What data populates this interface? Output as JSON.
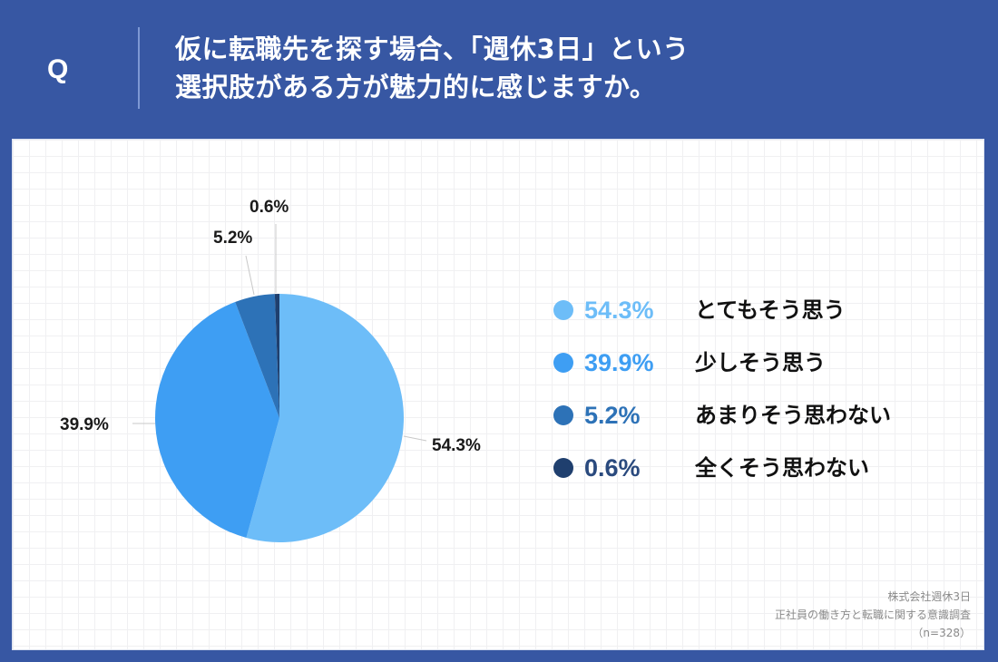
{
  "header": {
    "q_mark": "Q",
    "title_line1": "仮に転職先を探す場合、「週休3日」という",
    "title_line2": "選択肢がある方が魅力的に感じますか。",
    "bg_color": "#3757A3"
  },
  "pie_labels": {
    "s0": "54.3%",
    "s1": "39.9%",
    "s2": "5.2%",
    "s3": "0.6%"
  },
  "legend": [
    {
      "pct": "54.3%",
      "label": "とてもそう思う",
      "color": "#6DBDF8",
      "text_color": "#6DBDF8"
    },
    {
      "pct": "39.9%",
      "label": "少しそう思う",
      "color": "#3E9EF3",
      "text_color": "#3E9EF3"
    },
    {
      "pct": "5.2%",
      "label": "あまりそう思わない",
      "color": "#2D72B7",
      "text_color": "#2D72B7"
    },
    {
      "pct": "0.6%",
      "label": "全くそう思わない",
      "color": "#1F3F6E",
      "text_color": "#2A4A7E"
    }
  ],
  "source": {
    "line1": "株式会社週休3日",
    "line2": "正社員の働き方と転職に関する意識調査",
    "line3": "（n=328）"
  },
  "chart_data": {
    "type": "pie",
    "title": "仮に転職先を探す場合、「週休3日」という選択肢がある方が魅力的に感じますか。",
    "categories": [
      "とてもそう思う",
      "少しそう思う",
      "あまりそう思わない",
      "全くそう思わない"
    ],
    "values": [
      54.3,
      39.9,
      5.2,
      0.6
    ],
    "colors": [
      "#6DBDF8",
      "#3E9EF3",
      "#2D72B7",
      "#1F3F6E"
    ],
    "unit": "%",
    "start_angle": "12 o'clock, clockwise",
    "legend_position": "right",
    "n": 328,
    "source": "株式会社週休3日 正社員の働き方と転職に関する意識調査"
  }
}
